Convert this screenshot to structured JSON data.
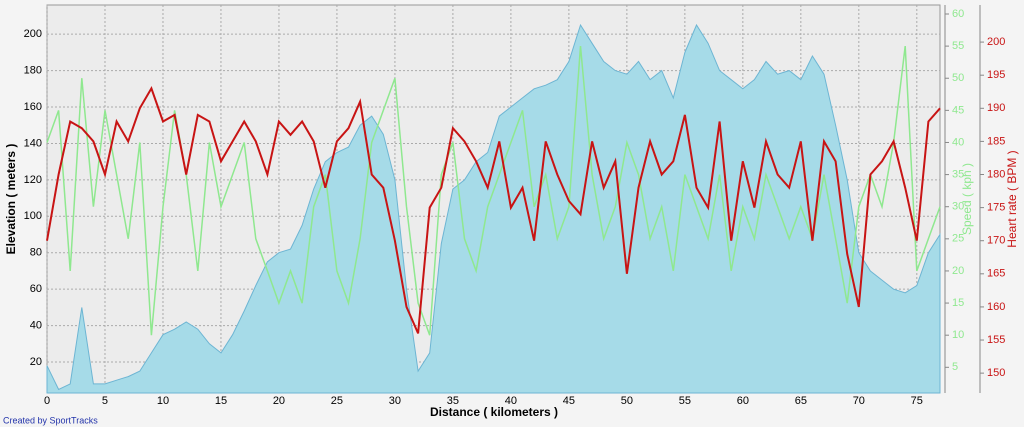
{
  "chart_data": {
    "type": "line",
    "xlabel": "Distance ( kilometers )",
    "ylabel": "Elevation ( meters )",
    "y2label": "Speed ( kph )",
    "y3label": "Heart rate ( BPM )",
    "credit": "Created by SportTracks",
    "grid": true,
    "x": [
      0,
      1,
      2,
      3,
      4,
      5,
      6,
      7,
      8,
      9,
      10,
      11,
      12,
      13,
      14,
      15,
      16,
      17,
      18,
      19,
      20,
      21,
      22,
      23,
      24,
      25,
      26,
      27,
      28,
      29,
      30,
      31,
      32,
      33,
      34,
      35,
      36,
      37,
      38,
      39,
      40,
      41,
      42,
      43,
      44,
      45,
      46,
      47,
      48,
      49,
      50,
      51,
      52,
      53,
      54,
      55,
      56,
      57,
      58,
      59,
      60,
      61,
      62,
      63,
      64,
      65,
      66,
      67,
      68,
      69,
      70,
      71,
      72,
      73,
      74,
      75,
      76,
      77
    ],
    "xlim": [
      0,
      77
    ],
    "xticks": [
      0,
      5,
      10,
      15,
      20,
      25,
      30,
      35,
      40,
      45,
      50,
      55,
      60,
      65,
      70,
      75
    ],
    "ylim": [
      3,
      216
    ],
    "yticks": [
      20,
      40,
      60,
      80,
      100,
      120,
      140,
      160,
      180,
      200
    ],
    "y2lim": [
      1,
      61.4
    ],
    "y2ticks": [
      5,
      10,
      15,
      20,
      25,
      30,
      35,
      40,
      45,
      50,
      55,
      60
    ],
    "y3lim": [
      147,
      205.6
    ],
    "y3ticks": [
      150,
      155,
      160,
      165,
      170,
      175,
      180,
      185,
      190,
      195,
      200
    ],
    "series": [
      {
        "name": "Elevation",
        "color": "#a6dbe8",
        "axis": "y",
        "values": [
          18,
          5,
          8,
          50,
          8,
          8,
          10,
          12,
          15,
          25,
          35,
          38,
          42,
          38,
          30,
          25,
          35,
          48,
          62,
          75,
          80,
          82,
          95,
          115,
          130,
          135,
          138,
          150,
          155,
          145,
          120,
          60,
          15,
          25,
          85,
          115,
          120,
          130,
          135,
          155,
          160,
          165,
          170,
          172,
          175,
          185,
          205,
          195,
          185,
          180,
          178,
          185,
          175,
          180,
          165,
          190,
          205,
          195,
          180,
          175,
          170,
          175,
          185,
          178,
          180,
          175,
          188,
          178,
          150,
          120,
          80,
          70,
          65,
          60,
          58,
          62,
          80,
          90
        ]
      },
      {
        "name": "Speed",
        "color": "#8fe88f",
        "axis": "y2",
        "values": [
          40,
          45,
          20,
          50,
          30,
          45,
          35,
          25,
          40,
          10,
          30,
          45,
          35,
          20,
          40,
          30,
          35,
          40,
          25,
          20,
          15,
          20,
          15,
          30,
          35,
          20,
          15,
          25,
          40,
          45,
          50,
          30,
          15,
          10,
          35,
          40,
          25,
          20,
          30,
          35,
          40,
          45,
          30,
          35,
          25,
          30,
          55,
          35,
          25,
          30,
          40,
          35,
          25,
          30,
          20,
          35,
          30,
          25,
          35,
          20,
          30,
          25,
          35,
          30,
          25,
          30,
          25,
          35,
          25,
          15,
          30,
          35,
          30,
          40,
          55,
          20,
          25,
          30
        ]
      },
      {
        "name": "Heart rate",
        "color": "#c81414",
        "axis": "y3",
        "values": [
          170,
          180,
          188,
          187,
          185,
          180,
          188,
          185,
          190,
          193,
          188,
          189,
          180,
          189,
          188,
          182,
          185,
          188,
          185,
          180,
          188,
          186,
          188,
          185,
          178,
          185,
          187,
          191,
          180,
          178,
          170,
          160,
          156,
          175,
          178,
          187,
          185,
          182,
          178,
          185,
          175,
          178,
          170,
          185,
          180,
          176,
          174,
          185,
          178,
          182,
          165,
          178,
          185,
          180,
          182,
          189,
          178,
          175,
          188,
          170,
          182,
          175,
          185,
          180,
          178,
          185,
          170,
          185,
          182,
          168,
          160,
          180,
          182,
          185,
          178,
          170,
          188,
          190
        ]
      }
    ]
  }
}
